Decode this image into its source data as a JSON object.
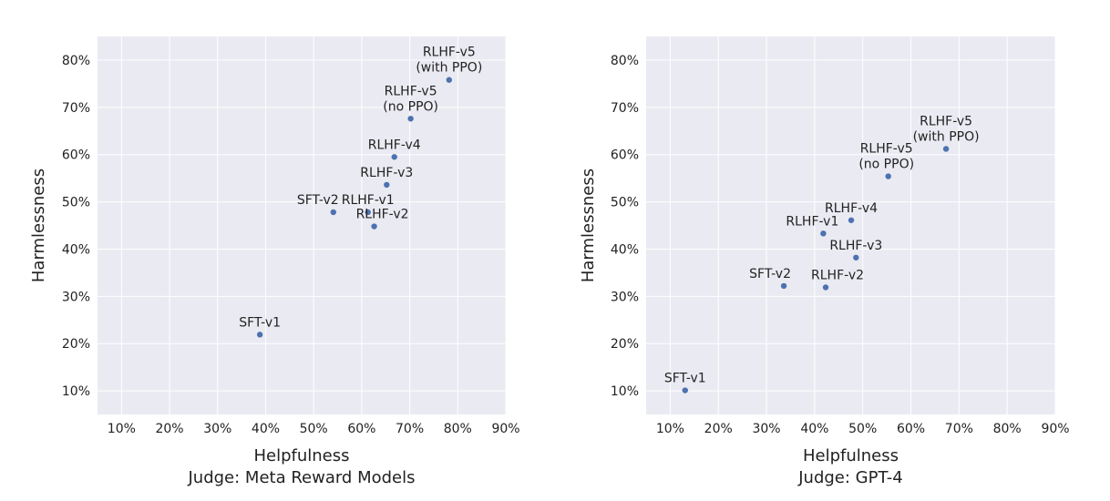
{
  "chart_data": [
    {
      "type": "scatter",
      "xlabel": "Helpfulness",
      "ylabel": "Harmlessness",
      "subtitle": "Judge: Meta Reward Models",
      "xlim": [
        5,
        90
      ],
      "ylim": [
        5,
        85
      ],
      "xticks": [
        "10%",
        "20%",
        "30%",
        "40%",
        "50%",
        "60%",
        "70%",
        "80%",
        "90%"
      ],
      "yticks": [
        "10%",
        "20%",
        "30%",
        "40%",
        "50%",
        "60%",
        "70%",
        "80%"
      ],
      "grid": true,
      "point_color": "#4c72b0",
      "background_color": "#eaeaf2",
      "points": [
        {
          "label": [
            "SFT-v1"
          ],
          "x": 38.8,
          "y": 21.9
        },
        {
          "label": [
            "SFT-v2"
          ],
          "x": 54.1,
          "y": 47.8
        },
        {
          "label": [
            "RLHF-v1"
          ],
          "x": 61.3,
          "y": 47.8
        },
        {
          "label": [
            "RLHF-v2"
          ],
          "x": 62.6,
          "y": 44.8
        },
        {
          "label": [
            "RLHF-v3"
          ],
          "x": 65.2,
          "y": 53.6
        },
        {
          "label": [
            "RLHF-v4"
          ],
          "x": 66.8,
          "y": 59.5
        },
        {
          "label": [
            "RLHF-v5",
            "(no PPO)"
          ],
          "x": 70.2,
          "y": 67.6
        },
        {
          "label": [
            "RLHF-v5",
            "(with PPO)"
          ],
          "x": 78.2,
          "y": 75.8
        }
      ]
    },
    {
      "type": "scatter",
      "xlabel": "Helpfulness",
      "ylabel": "Harmlessness",
      "subtitle": "Judge: GPT-4",
      "xlim": [
        5,
        90
      ],
      "ylim": [
        5,
        85
      ],
      "xticks": [
        "10%",
        "20%",
        "30%",
        "40%",
        "50%",
        "60%",
        "70%",
        "80%",
        "90%"
      ],
      "yticks": [
        "10%",
        "20%",
        "30%",
        "40%",
        "50%",
        "60%",
        "70%",
        "80%"
      ],
      "grid": true,
      "point_color": "#4c72b0",
      "background_color": "#eaeaf2",
      "points": [
        {
          "label": [
            "SFT-v1"
          ],
          "x": 13.1,
          "y": 10.1
        },
        {
          "label": [
            "SFT-v2"
          ],
          "x": 33.6,
          "y": 32.2
        },
        {
          "label": [
            "RLHF-v2"
          ],
          "x": 42.3,
          "y": 31.9
        },
        {
          "label": [
            "RLHF-v1"
          ],
          "x": 41.8,
          "y": 43.3
        },
        {
          "label": [
            "RLHF-v3"
          ],
          "x": 48.6,
          "y": 38.2
        },
        {
          "label": [
            "RLHF-v4"
          ],
          "x": 47.6,
          "y": 46.1
        },
        {
          "label": [
            "RLHF-v5",
            "(no PPO)"
          ],
          "x": 55.3,
          "y": 55.4
        },
        {
          "label": [
            "RLHF-v5",
            "(with PPO)"
          ],
          "x": 67.3,
          "y": 61.2
        }
      ]
    }
  ]
}
